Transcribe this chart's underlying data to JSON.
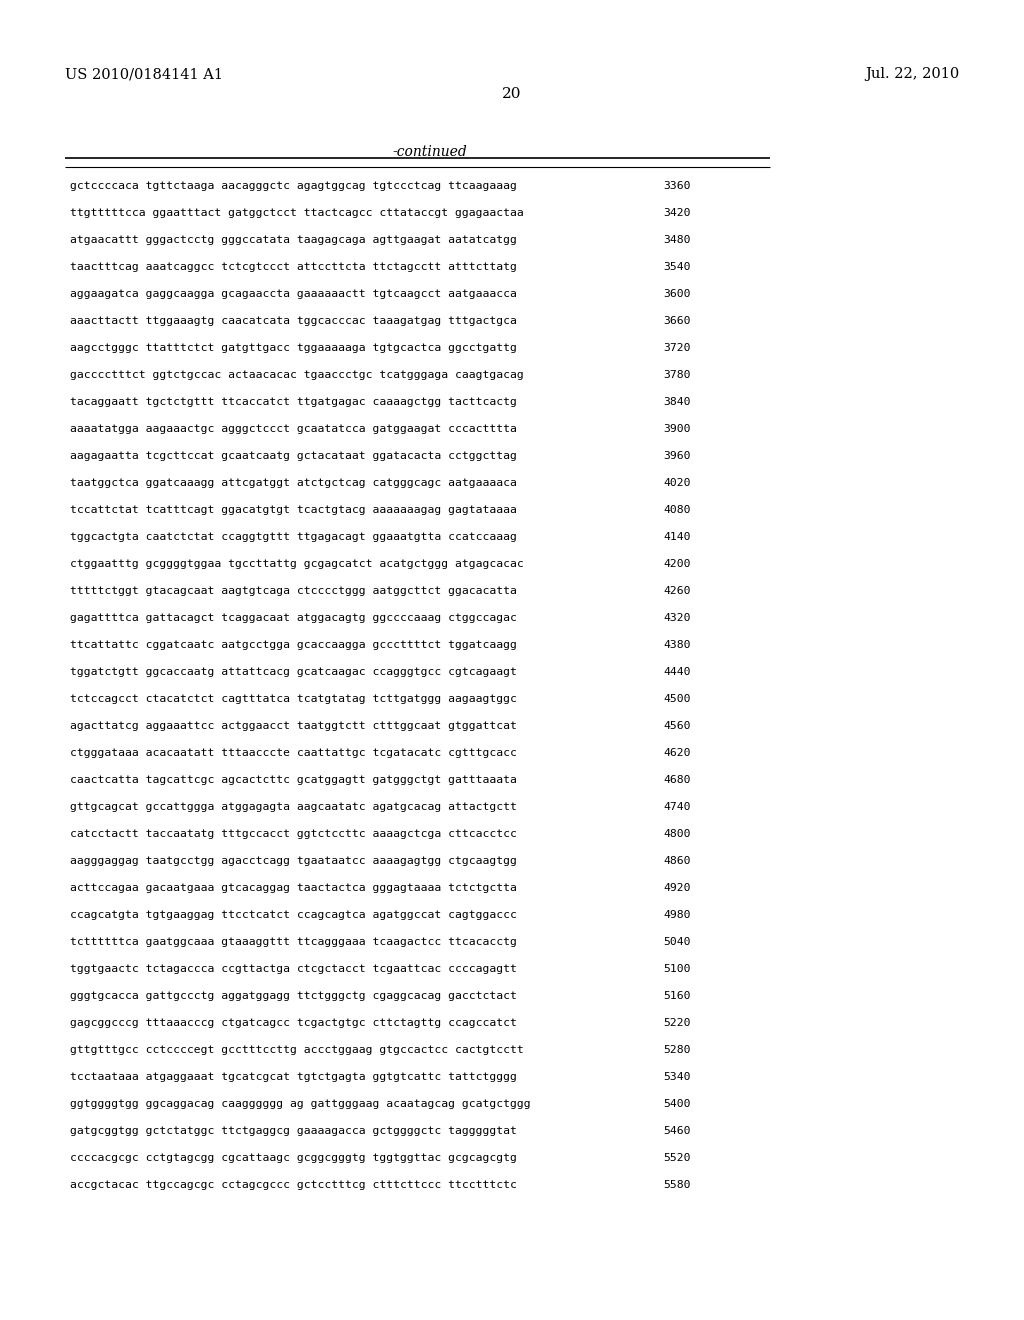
{
  "header_left": "US 2010/0184141 A1",
  "header_right": "Jul. 22, 2010",
  "page_number": "20",
  "continued_label": "-continued",
  "background_color": "#ffffff",
  "text_color": "#000000",
  "sequence_lines": [
    [
      "gctccccaca tgttctaaga aacagggctc agagtggcag tgtccctcag ttcaagaaag",
      "3360"
    ],
    [
      "ttgtttttcca ggaatttact gatggctcct ttactcagcc cttataccgt ggagaactaa",
      "3420"
    ],
    [
      "atgaacattt gggactcctg gggccatata taagagcaga agttgaagat aatatcatgg",
      "3480"
    ],
    [
      "taactttcag aaatcaggcc tctcgtccct attccttcta ttctagcctt atttcttatg",
      "3540"
    ],
    [
      "aggaagatca gaggcaagga gcagaaccta gaaaaaactt tgtcaagcct aatgaaacca",
      "3600"
    ],
    [
      "aaacttactt ttggaaagtg caacatcata tggcacccac taaagatgag tttgactgca",
      "3660"
    ],
    [
      "aagcctgggc ttatttctct gatgttgacc tggaaaaaga tgtgcactca ggcctgattg",
      "3720"
    ],
    [
      "gacccctttct ggtctgccac actaacacac tgaaccctgc tcatgggaga caagtgacag",
      "3780"
    ],
    [
      "tacaggaatt tgctctgttt ttcaccatct ttgatgagac caaaagctgg tacttcactg",
      "3840"
    ],
    [
      "aaaatatgga aagaaactgc agggctccct gcaatatcca gatggaagat cccactttta",
      "3900"
    ],
    [
      "aagagaatta tcgcttccat gcaatcaatg gctacataat ggatacacta cctggcttag",
      "3960"
    ],
    [
      "taatggctca ggatcaaagg attcgatggt atctgctcag catgggcagc aatgaaaaca",
      "4020"
    ],
    [
      "tccattctat tcatttcagt ggacatgtgt tcactgtacg aaaaaaagag gagtataaaa",
      "4080"
    ],
    [
      "tggcactgta caatctctat ccaggtgttt ttgagacagt ggaaatgtta ccatccaaag",
      "4140"
    ],
    [
      "ctggaatttg gcggggtggaa tgccttattg gcgagcatct acatgctggg atgagcacac",
      "4200"
    ],
    [
      "tttttctggt gtacagcaat aagtgtcaga ctcccctggg aatggcttct ggacacatta",
      "4260"
    ],
    [
      "gagattttca gattacagct tcaggacaat atggacagtg ggccccaaag ctggccagac",
      "4320"
    ],
    [
      "ttcattattc cggatcaatc aatgcctgga gcaccaagga gcccttttct tggatcaagg",
      "4380"
    ],
    [
      "tggatctgtt ggcaccaatg attattcacg gcatcaagac ccagggtgcc cgtcagaagt",
      "4440"
    ],
    [
      "tctccagcct ctacatctct cagtttatca tcatgtatag tcttgatggg aagaagtggc",
      "4500"
    ],
    [
      "agacttatcg aggaaattcc actggaacct taatggtctt ctttggcaat gtggattcat",
      "4560"
    ],
    [
      "ctgggataaa acacaatatt tttaacccte caattattgc tcgatacatc cgtttgcacc",
      "4620"
    ],
    [
      "caactcatta tagcattcgc agcactcttc gcatggagtt gatgggctgt gatttaaata",
      "4680"
    ],
    [
      "gttgcagcat gccattggga atggagagta aagcaatatc agatgcacag attactgctt",
      "4740"
    ],
    [
      "catcctactt taccaatatg tttgccacct ggtctccttc aaaagctcga cttcacctcc",
      "4800"
    ],
    [
      "aagggaggag taatgcctgg agacctcagg tgaataatcc aaaagagtgg ctgcaagtgg",
      "4860"
    ],
    [
      "acttccagaa gacaatgaaa gtcacaggag taactactca gggagtaaaa tctctgctta",
      "4920"
    ],
    [
      "ccagcatgta tgtgaaggag ttcctcatct ccagcagtca agatggccat cagtggaccc",
      "4980"
    ],
    [
      "tcttttttca gaatggcaaa gtaaaggttt ttcagggaaa tcaagactcc ttcacacctg",
      "5040"
    ],
    [
      "tggtgaactc tctagaccca ccgttactga ctcgctacct tcgaattcac ccccagagtt",
      "5100"
    ],
    [
      "gggtgcacca gattgccctg aggatggagg ttctgggctg cgaggcacag gacctctact",
      "5160"
    ],
    [
      "gagcggcccg tttaaacccg ctgatcagcc tcgactgtgc cttctagttg ccagccatct",
      "5220"
    ],
    [
      "gttgtttgcc cctccccegt gcctttccttg accctggaag gtgccactcc cactgtcctt",
      "5280"
    ],
    [
      "tcctaataaa atgaggaaat tgcatcgcat tgtctgagta ggtgtcattc tattctgggg",
      "5340"
    ],
    [
      "ggtggggtgg ggcaggacag caagggggg ag gattgggaag acaatagcag gcatgctggg",
      "5400"
    ],
    [
      "gatgcggtgg gctctatggc ttctgaggcg gaaaagacca gctggggctc tagggggtat",
      "5460"
    ],
    [
      "ccccacgcgc cctgtagcgg cgcattaagc gcggcgggtg tggtggttac gcgcagcgtg",
      "5520"
    ],
    [
      "accgctacac ttgccagcgc cctagcgccc gctcctttcg ctttcttccc ttcctttctc",
      "5580"
    ]
  ]
}
